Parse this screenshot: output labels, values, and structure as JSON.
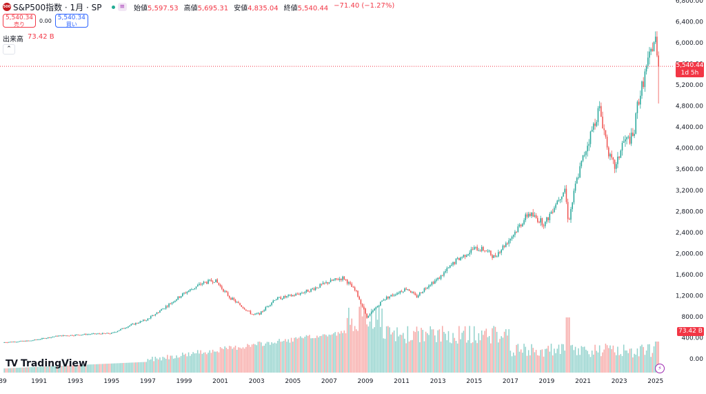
{
  "header": {
    "symbol_logo": "500",
    "symbol": "S&P500指数 · 1月 · SP",
    "eq_icon": "≡",
    "ohlc": [
      {
        "label": "始値",
        "value": "5,597.53"
      },
      {
        "label": "高値",
        "value": "5,695.31"
      },
      {
        "label": "安値",
        "value": "4,835.04"
      },
      {
        "label": "終値",
        "value": "5,540.44"
      },
      {
        "label": "",
        "value": "−71.40 (−1.27%)"
      }
    ]
  },
  "trade": {
    "sell_price": "5,540.34",
    "sell_label": "売り",
    "spread": "0.00",
    "buy_price": "5,540.34",
    "buy_label": "買い"
  },
  "volume": {
    "label": "出来高",
    "value": "73.42 B"
  },
  "price_tag": {
    "price": "5,540.44",
    "countdown": "1d 5h"
  },
  "volume_tag": "73.42 B",
  "watermark": "TradingView",
  "colors": {
    "up": "#26a69a",
    "down": "#ef5350",
    "vol_up": "#92d2cc",
    "vol_down": "#f7a9a7",
    "price_line": "#f23645"
  },
  "chart_data": {
    "type": "candlestick",
    "timeframe": "1M",
    "x_ticks": [
      "89",
      "1991",
      "1993",
      "1995",
      "1997",
      "1999",
      "2001",
      "2003",
      "2005",
      "2007",
      "2009",
      "2011",
      "2013",
      "2015",
      "2017",
      "2019",
      "2021",
      "2023",
      "2025"
    ],
    "y_ticks": [
      "6,800.00",
      "6,400.00",
      "6,000.00",
      "5,600.00",
      "5,200.00",
      "4,800.00",
      "4,400.00",
      "4,000.00",
      "3,600.00",
      "3,200.00",
      "2,800.00",
      "2,400.00",
      "2,000.00",
      "1,600.00",
      "1,200.00",
      "800.00",
      "400.00",
      "0.00"
    ],
    "ylim": [
      0,
      6800
    ],
    "last_close": 5540.44,
    "close_path": [
      [
        1989.0,
        300
      ],
      [
        1990.5,
        330
      ],
      [
        1992.0,
        420
      ],
      [
        1994.0,
        460
      ],
      [
        1995.0,
        470
      ],
      [
        1996.0,
        620
      ],
      [
        1997.0,
        740
      ],
      [
        1998.0,
        980
      ],
      [
        1999.0,
        1230
      ],
      [
        2000.0,
        1420
      ],
      [
        2000.7,
        1480
      ],
      [
        2001.5,
        1160
      ],
      [
        2002.8,
        820
      ],
      [
        2003.2,
        850
      ],
      [
        2004.0,
        1120
      ],
      [
        2005.0,
        1190
      ],
      [
        2006.0,
        1300
      ],
      [
        2007.0,
        1450
      ],
      [
        2007.8,
        1530
      ],
      [
        2008.5,
        1250
      ],
      [
        2009.1,
        770
      ],
      [
        2010.0,
        1120
      ],
      [
        2011.3,
        1330
      ],
      [
        2011.8,
        1160
      ],
      [
        2012.5,
        1400
      ],
      [
        2013.0,
        1500
      ],
      [
        2014.0,
        1850
      ],
      [
        2015.0,
        2080
      ],
      [
        2015.6,
        2060
      ],
      [
        2016.1,
        1920
      ],
      [
        2017.0,
        2280
      ],
      [
        2018.0,
        2750
      ],
      [
        2018.9,
        2550
      ],
      [
        2019.5,
        2950
      ],
      [
        2020.0,
        3220
      ],
      [
        2020.2,
        2580
      ],
      [
        2020.6,
        3300
      ],
      [
        2021.0,
        3800
      ],
      [
        2021.9,
        4750
      ],
      [
        2022.5,
        3790
      ],
      [
        2022.8,
        3600
      ],
      [
        2023.2,
        4100
      ],
      [
        2023.8,
        4200
      ],
      [
        2024.0,
        4800
      ],
      [
        2024.5,
        5500
      ],
      [
        2024.9,
        6000
      ],
      [
        2025.0,
        6040
      ],
      [
        2025.2,
        5540
      ]
    ],
    "volume": {
      "unit": "B",
      "last": 73.42
    }
  }
}
